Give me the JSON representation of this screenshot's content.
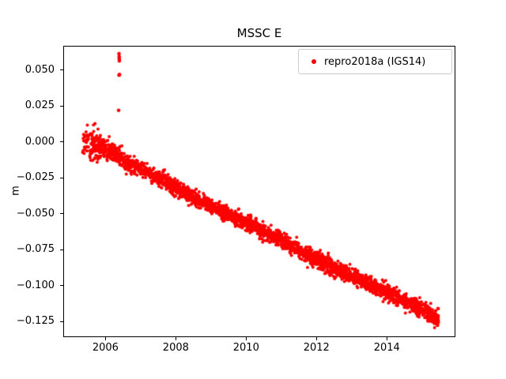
{
  "chart_data": {
    "type": "scatter",
    "title": "MSSC E",
    "xlabel": "",
    "ylabel": "m",
    "xlim": [
      2004.8,
      2015.95
    ],
    "ylim": [
      -0.136,
      0.067
    ],
    "grid": false,
    "background": "#ffffff",
    "xticks": {
      "values": [
        2006,
        2008,
        2010,
        2012,
        2014
      ],
      "labels": [
        "2006",
        "2008",
        "2010",
        "2012",
        "2014"
      ]
    },
    "yticks": {
      "values": [
        0.05,
        0.025,
        0.0,
        -0.025,
        -0.05,
        -0.075,
        -0.1,
        -0.125
      ],
      "labels": [
        "0.050",
        "0.025",
        "0.000",
        "−0.025",
        "−0.050",
        "−0.075",
        "−0.100",
        "−0.125"
      ]
    },
    "legend": {
      "position": "upper right",
      "entries": [
        {
          "label": "repro2018a (IGS14)",
          "color": "#ff0000",
          "marker": "point"
        }
      ]
    },
    "series": [
      {
        "name": "repro2018a (IGS14)",
        "color": "#ff0000",
        "marker_radius_px": 2,
        "x_start": 2005.35,
        "x_end": 2015.47,
        "n_points": 2800,
        "trend": [
          [
            2005.35,
            0.0005
          ],
          [
            2005.55,
            -0.0015
          ],
          [
            2005.8,
            -0.003
          ],
          [
            2006.0,
            -0.0045
          ],
          [
            2006.2,
            -0.007
          ],
          [
            2006.45,
            -0.011
          ],
          [
            2006.65,
            -0.016
          ],
          [
            2006.9,
            -0.0175
          ],
          [
            2007.2,
            -0.021
          ],
          [
            2007.6,
            -0.0265
          ],
          [
            2008.0,
            -0.032
          ],
          [
            2008.5,
            -0.0385
          ],
          [
            2009.0,
            -0.0445
          ],
          [
            2009.5,
            -0.0505
          ],
          [
            2010.0,
            -0.0565
          ],
          [
            2010.5,
            -0.0625
          ],
          [
            2011.0,
            -0.0685
          ],
          [
            2011.5,
            -0.0755
          ],
          [
            2012.0,
            -0.082
          ],
          [
            2012.5,
            -0.088
          ],
          [
            2013.0,
            -0.0935
          ],
          [
            2013.5,
            -0.099
          ],
          [
            2014.0,
            -0.1045
          ],
          [
            2014.5,
            -0.1105
          ],
          [
            2015.0,
            -0.1165
          ],
          [
            2015.3,
            -0.121
          ],
          [
            2015.47,
            -0.124
          ]
        ],
        "noise_sigma": [
          [
            2005.35,
            0.0055
          ],
          [
            2005.65,
            0.005
          ],
          [
            2005.95,
            0.0038
          ],
          [
            2006.2,
            0.0028
          ],
          [
            2015.95,
            0.0028
          ]
        ],
        "outliers": [
          [
            2006.375,
            0.022
          ],
          [
            2006.385,
            0.0615
          ],
          [
            2006.39,
            0.0595
          ],
          [
            2006.392,
            0.058
          ],
          [
            2006.395,
            0.0565
          ],
          [
            2006.398,
            0.047
          ],
          [
            2006.388,
            0.0465
          ]
        ]
      }
    ]
  }
}
